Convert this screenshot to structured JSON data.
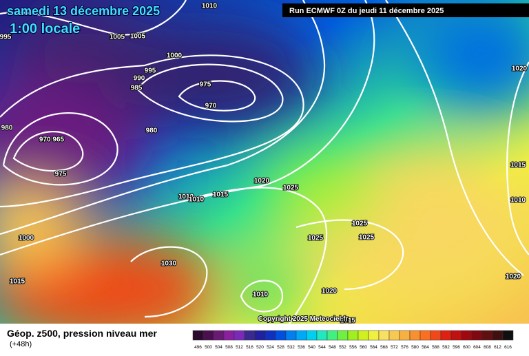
{
  "header": {
    "title": "samedi 13 décembre 2025",
    "time": "1:00 locale",
    "run": "Run ECMWF 0Z du jeudi 11 décembre 2025"
  },
  "isobar_labels": [
    "995",
    "1005",
    "1005",
    "1010",
    "1000",
    "995",
    "990",
    "985",
    "975",
    "970",
    "980",
    "970 965",
    "975",
    "980",
    "1020",
    "1025",
    "1010",
    "1010",
    "1015",
    "1000",
    "1030",
    "1015",
    "1025",
    "1025",
    "1025",
    "1020",
    "1010",
    "1020",
    "1015",
    "1010",
    "1020",
    "1015"
  ],
  "copyright": "Copyright 2025 Meteociel.fr",
  "footer": {
    "title": "Géop. z500, pression niveau mer",
    "lead": "(+48h)"
  },
  "scale": {
    "values": [
      496,
      500,
      504,
      508,
      512,
      516,
      520,
      524,
      528,
      532,
      536,
      540,
      544,
      548,
      552,
      556,
      560,
      564,
      568,
      572,
      576,
      580,
      584,
      588,
      592,
      596,
      600,
      604,
      608,
      612,
      616
    ],
    "colors": [
      "#2a0a2e",
      "#4a0f4f",
      "#6a1a75",
      "#8a1fa0",
      "#7a2ab8",
      "#3a2a90",
      "#2020a0",
      "#1030c0",
      "#0050e0",
      "#0080f0",
      "#00a8f8",
      "#00d0f0",
      "#20e8c0",
      "#40f080",
      "#70f040",
      "#a0f020",
      "#d0f020",
      "#f0f040",
      "#f8e060",
      "#f8c850",
      "#f8b040",
      "#f89030",
      "#f87020",
      "#f04818",
      "#e02010",
      "#c01010",
      "#a00810",
      "#800810",
      "#601010",
      "#401010",
      "#101010"
    ]
  }
}
